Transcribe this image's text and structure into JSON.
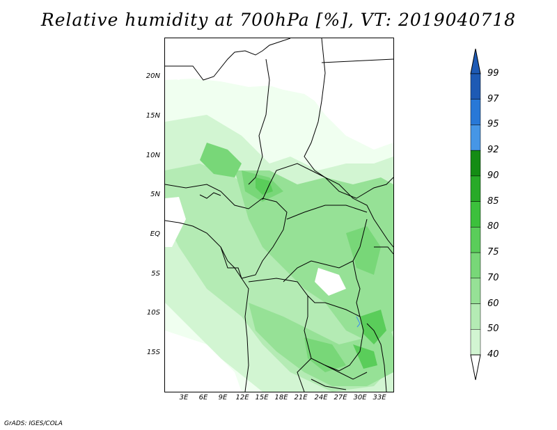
{
  "title": "Relative humidity at 700hPa [%], VT: 2019040718",
  "credit": "GrADS: IGES/COLA",
  "map": {
    "region": "Central Africa",
    "lat_labels": [
      "20N",
      "15N",
      "10N",
      "5N",
      "EQ",
      "5S",
      "10S",
      "15S"
    ],
    "lon_labels": [
      "3E",
      "6E",
      "9E",
      "12E",
      "15E",
      "18E",
      "21E",
      "24E",
      "27E",
      "30E",
      "33E"
    ],
    "lat_range": [
      -20,
      24
    ],
    "lon_range": [
      0,
      35
    ]
  },
  "colorbar": {
    "levels": [
      "40",
      "50",
      "60",
      "70",
      "75",
      "80",
      "85",
      "90",
      "92",
      "95",
      "97",
      "99"
    ],
    "colors": [
      "#f0fff0",
      "#d2f5d2",
      "#b4ebb4",
      "#96e196",
      "#78d778",
      "#5acd5a",
      "#3cc03c",
      "#28aa28",
      "#148c14",
      "#4696e6",
      "#2878d7",
      "#1e5ab4"
    ],
    "extend": "both"
  }
}
